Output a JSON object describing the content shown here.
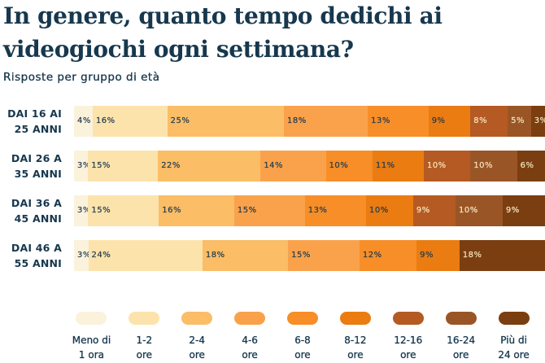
{
  "title": "In genere, quanto tempo dedichi ai videogiochi ogni settimana?",
  "subtitle": "Risposte per gruppo di età",
  "colors": {
    "background": "#FFFFFF",
    "text_dark": "#17384E",
    "text_light_on_dark_segments": "#F5E6BE"
  },
  "chart_data": {
    "type": "bar",
    "stacked": true,
    "orientation": "horizontal",
    "unit": "%",
    "categories": [
      "Meno di 1 ora",
      "1-2 ore",
      "2-4 ore",
      "4-6 ore",
      "6-8 ore",
      "8-12 ore",
      "12-16 ore",
      "16-24 ore",
      "Più di 24 ore"
    ],
    "palette": [
      "#FBF2DC",
      "#FCE3AC",
      "#FBBD66",
      "#FAA24B",
      "#F78E28",
      "#EA7C12",
      "#B55A22",
      "#9A5526",
      "#7B3E10"
    ],
    "light_text_from_index": 6,
    "rows": [
      {
        "label": "DAI 16 AI 25 ANNI",
        "label_lines": [
          "DAI 16 AI",
          "25 ANNI"
        ],
        "values": [
          4,
          16,
          25,
          18,
          13,
          9,
          8,
          5,
          3
        ]
      },
      {
        "label": "DAI 26 A 35 ANNI",
        "label_lines": [
          "DAI 26 A",
          "35 ANNI"
        ],
        "values": [
          3,
          15,
          22,
          14,
          10,
          11,
          10,
          10,
          6
        ]
      },
      {
        "label": "DAI 36 A 45 ANNI",
        "label_lines": [
          "DAI 36 A",
          "45 ANNI"
        ],
        "values": [
          3,
          15,
          16,
          15,
          13,
          10,
          9,
          10,
          9
        ]
      },
      {
        "label": "DAI 46 A 55 ANNI",
        "label_lines": [
          "DAI 46 A",
          "55 ANNI"
        ],
        "values": [
          3,
          24,
          18,
          15,
          12,
          9,
          0,
          0,
          18
        ]
      }
    ]
  },
  "legend": {
    "items": [
      {
        "label_lines": [
          "Meno di",
          "1 ora"
        ]
      },
      {
        "label_lines": [
          "1-2",
          "ore"
        ]
      },
      {
        "label_lines": [
          "2-4",
          "ore"
        ]
      },
      {
        "label_lines": [
          "4-6",
          "ore"
        ]
      },
      {
        "label_lines": [
          "6-8",
          "ore"
        ]
      },
      {
        "label_lines": [
          "8-12",
          "ore"
        ]
      },
      {
        "label_lines": [
          "12-16",
          "ore"
        ]
      },
      {
        "label_lines": [
          "16-24",
          "ore"
        ]
      },
      {
        "label_lines": [
          "Più di",
          "24 ore"
        ]
      }
    ]
  }
}
